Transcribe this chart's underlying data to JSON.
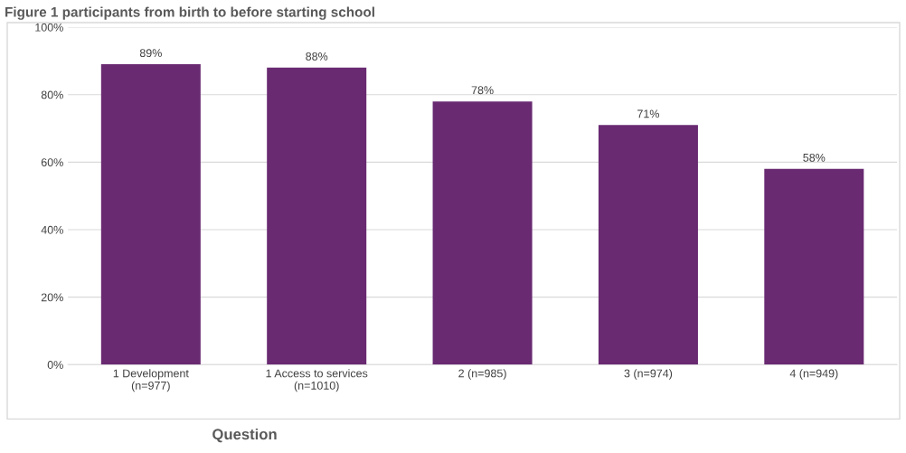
{
  "chart_data": {
    "type": "bar",
    "title": "Figure 1 participants from birth to before starting school",
    "xlabel": "Question",
    "categories": [
      "1 Development\n(n=977)",
      "1 Access to services\n(n=1010)",
      "2 (n=985)",
      "3 (n=974)",
      "4 (n=949)"
    ],
    "values": [
      89,
      88,
      78,
      71,
      58
    ],
    "value_labels": [
      "89%",
      "88%",
      "78%",
      "71%",
      "58%"
    ],
    "color": "#692a72",
    "ylim": [
      0,
      100
    ],
    "yticks": [
      {
        "value": 0,
        "label": "0%"
      },
      {
        "value": 20,
        "label": "20%"
      },
      {
        "value": 40,
        "label": "40%"
      },
      {
        "value": 60,
        "label": "60%"
      },
      {
        "value": 80,
        "label": "80%"
      },
      {
        "value": 100,
        "label": "100%"
      }
    ],
    "grid": "y"
  }
}
